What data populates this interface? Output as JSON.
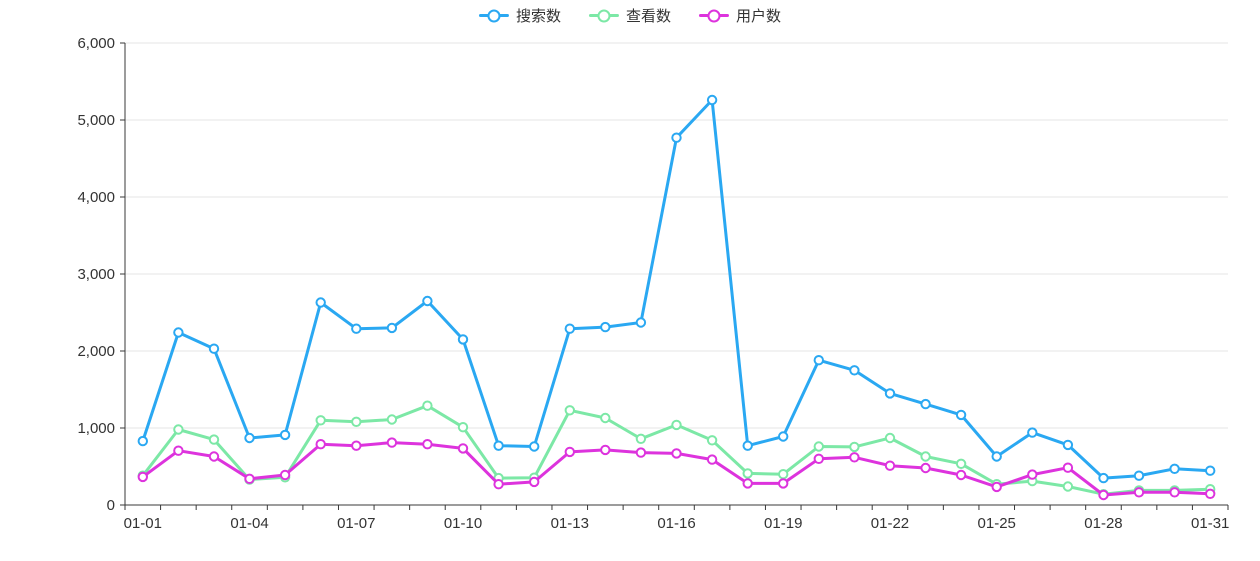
{
  "chart_data": {
    "type": "line",
    "title": "",
    "legend_position": "top-center",
    "grid": true,
    "x_axis": {
      "categories": [
        "01-01",
        "01-02",
        "01-03",
        "01-04",
        "01-05",
        "01-06",
        "01-07",
        "01-08",
        "01-09",
        "01-10",
        "01-11",
        "01-12",
        "01-13",
        "01-14",
        "01-15",
        "01-16",
        "01-17",
        "01-18",
        "01-19",
        "01-20",
        "01-21",
        "01-22",
        "01-23",
        "01-24",
        "01-25",
        "01-26",
        "01-27",
        "01-28",
        "01-29",
        "01-30",
        "01-31"
      ],
      "label_every": 3,
      "shown_tick_labels": [
        "01-01",
        "01-04",
        "01-07",
        "01-10",
        "01-13",
        "01-16",
        "01-19",
        "01-22",
        "01-25",
        "01-28",
        "01-31"
      ]
    },
    "y_axis": {
      "min": 0,
      "max": 6000,
      "tick_interval": 1000,
      "tick_labels": [
        "0",
        "1,000",
        "2,000",
        "3,000",
        "4,000",
        "5,000",
        "6,000"
      ]
    },
    "series": [
      {
        "name": "搜索数",
        "color": "#2AA8F2",
        "marker": "hollow-circle",
        "values": [
          830,
          2240,
          2030,
          870,
          910,
          2630,
          2290,
          2300,
          2650,
          2150,
          770,
          760,
          2290,
          2310,
          2370,
          4770,
          5260,
          770,
          890,
          1880,
          1750,
          1450,
          1310,
          1170,
          630,
          940,
          780,
          350,
          380,
          470,
          445
        ]
      },
      {
        "name": "查看数",
        "color": "#7CE8A6",
        "marker": "hollow-circle",
        "values": [
          380,
          980,
          850,
          330,
          360,
          1100,
          1080,
          1110,
          1290,
          1010,
          350,
          355,
          1230,
          1130,
          860,
          1040,
          840,
          410,
          400,
          760,
          755,
          870,
          630,
          535,
          270,
          310,
          240,
          140,
          190,
          190,
          205
        ]
      },
      {
        "name": "用户数",
        "color": "#DD33DD",
        "marker": "hollow-circle",
        "values": [
          365,
          705,
          630,
          340,
          390,
          790,
          770,
          810,
          790,
          735,
          270,
          300,
          690,
          715,
          680,
          670,
          590,
          280,
          280,
          600,
          620,
          510,
          480,
          390,
          235,
          395,
          485,
          130,
          165,
          165,
          145
        ]
      }
    ],
    "colors": {
      "axis": "#383838",
      "grid": "#e6e6e6",
      "background": "#ffffff"
    }
  }
}
